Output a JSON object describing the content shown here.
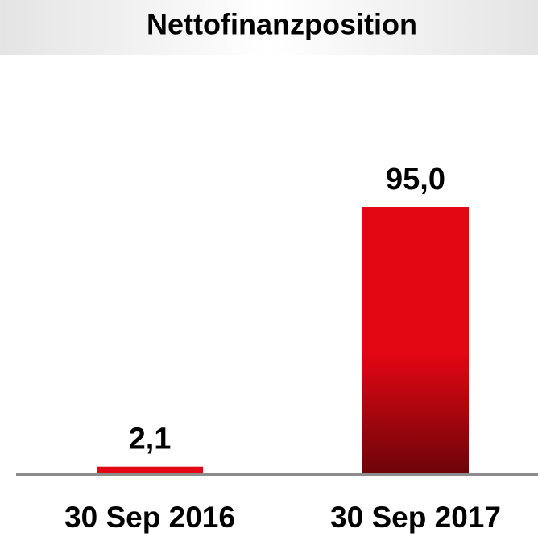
{
  "chart_data": {
    "type": "bar",
    "title": "Nettofinanzposition",
    "categories": [
      "30 Sep 2016",
      "30 Sep 2017"
    ],
    "values": [
      2.1,
      95.0
    ],
    "value_labels": [
      "2,1",
      "95,0"
    ],
    "color": "#e30613"
  }
}
